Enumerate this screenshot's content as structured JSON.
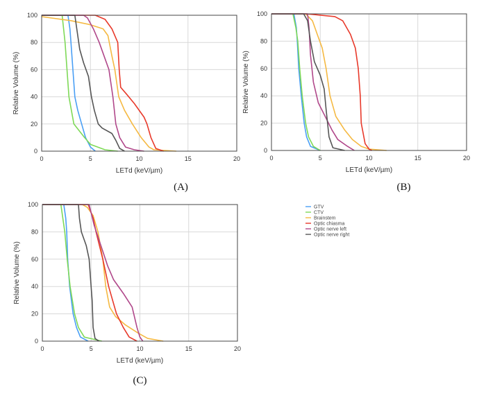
{
  "legend": {
    "placement": "right of panel C",
    "entries": [
      {
        "name": "GTV",
        "color": "#4a9ff5"
      },
      {
        "name": "CTV",
        "color": "#7ed957"
      },
      {
        "name": "Brainstem",
        "color": "#f5b942"
      },
      {
        "name": "Optic chiasma",
        "color": "#e8392a"
      },
      {
        "name": "Optic nerve left",
        "color": "#b0478a"
      },
      {
        "name": "Optic nerve right",
        "color": "#555555"
      }
    ]
  },
  "chart_data": [
    {
      "type": "line",
      "caption": "(A)",
      "xlabel": "LETd (keV/µm)",
      "ylabel": "Relative Volume (%)",
      "xlim": [
        0,
        20
      ],
      "ylim": [
        0,
        100
      ],
      "xticks": [
        0,
        5,
        10,
        15,
        20
      ],
      "yticks": [
        0,
        20,
        40,
        60,
        80,
        100
      ],
      "grid": true,
      "series": [
        {
          "name": "GTV",
          "points": [
            [
              0,
              100
            ],
            [
              2.7,
              100
            ],
            [
              2.9,
              90
            ],
            [
              3.0,
              80
            ],
            [
              3.2,
              60
            ],
            [
              3.4,
              40
            ],
            [
              3.7,
              30
            ],
            [
              4.1,
              20
            ],
            [
              4.5,
              10
            ],
            [
              5.0,
              3
            ],
            [
              5.5,
              0
            ]
          ]
        },
        {
          "name": "CTV",
          "points": [
            [
              0,
              100
            ],
            [
              2.1,
              100
            ],
            [
              2.25,
              90
            ],
            [
              2.4,
              80
            ],
            [
              2.6,
              60
            ],
            [
              2.8,
              40
            ],
            [
              3.3,
              20
            ],
            [
              4.4,
              10
            ],
            [
              5.0,
              5
            ],
            [
              6.5,
              1
            ],
            [
              7.8,
              0
            ]
          ]
        },
        {
          "name": "Brainstem",
          "points": [
            [
              0,
              99
            ],
            [
              3,
              96
            ],
            [
              5,
              93
            ],
            [
              6.3,
              90
            ],
            [
              6.8,
              85
            ],
            [
              7.2,
              70
            ],
            [
              7.5,
              60
            ],
            [
              7.9,
              40
            ],
            [
              8.5,
              30
            ],
            [
              9.3,
              20
            ],
            [
              10.2,
              10
            ],
            [
              11,
              3
            ],
            [
              11.5,
              1
            ],
            [
              13.8,
              0
            ]
          ]
        },
        {
          "name": "Optic chiasma",
          "points": [
            [
              0,
              100
            ],
            [
              5.5,
              100
            ],
            [
              6.5,
              97
            ],
            [
              7.2,
              90
            ],
            [
              7.8,
              80
            ],
            [
              7.95,
              60
            ],
            [
              8.1,
              47
            ],
            [
              8.7,
              42
            ],
            [
              9.5,
              35
            ],
            [
              10.5,
              25
            ],
            [
              10.8,
              20
            ],
            [
              11.2,
              10
            ],
            [
              11.7,
              2
            ],
            [
              12.5,
              0
            ]
          ]
        },
        {
          "name": "Optic nerve left",
          "points": [
            [
              0,
              100
            ],
            [
              4.3,
              100
            ],
            [
              4.7,
              98
            ],
            [
              5.3,
              90
            ],
            [
              5.9,
              80
            ],
            [
              6.4,
              70
            ],
            [
              6.9,
              60
            ],
            [
              7.3,
              40
            ],
            [
              7.6,
              20
            ],
            [
              8.0,
              10
            ],
            [
              8.6,
              3
            ],
            [
              9.5,
              1
            ],
            [
              10.5,
              0
            ]
          ]
        },
        {
          "name": "Optic nerve right",
          "points": [
            [
              0,
              100
            ],
            [
              3.4,
              100
            ],
            [
              3.6,
              90
            ],
            [
              3.9,
              75
            ],
            [
              4.3,
              65
            ],
            [
              4.8,
              55
            ],
            [
              5.1,
              40
            ],
            [
              5.4,
              30
            ],
            [
              5.8,
              20
            ],
            [
              6.2,
              17
            ],
            [
              7.2,
              13
            ],
            [
              7.6,
              8
            ],
            [
              8.0,
              2
            ],
            [
              8.5,
              0
            ]
          ]
        }
      ]
    },
    {
      "type": "line",
      "caption": "(B)",
      "xlabel": "LETd (keV/µm)",
      "ylabel": "Relative Volume (%)",
      "xlim": [
        0,
        20
      ],
      "ylim": [
        0,
        100
      ],
      "xticks": [
        0,
        5,
        10,
        15,
        20
      ],
      "yticks": [
        0,
        20,
        40,
        60,
        80,
        100
      ],
      "grid": true,
      "series": [
        {
          "name": "GTV",
          "points": [
            [
              0,
              100
            ],
            [
              2.3,
              100
            ],
            [
              2.55,
              90
            ],
            [
              2.65,
              80
            ],
            [
              2.8,
              60
            ],
            [
              3.05,
              40
            ],
            [
              3.35,
              20
            ],
            [
              3.6,
              10
            ],
            [
              4.0,
              3
            ],
            [
              5.0,
              0
            ]
          ]
        },
        {
          "name": "CTV",
          "points": [
            [
              0,
              100
            ],
            [
              2.2,
              100
            ],
            [
              2.5,
              90
            ],
            [
              2.7,
              80
            ],
            [
              2.9,
              60
            ],
            [
              3.15,
              40
            ],
            [
              3.5,
              20
            ],
            [
              3.8,
              10
            ],
            [
              4.3,
              3
            ],
            [
              5.0,
              0
            ]
          ]
        },
        {
          "name": "Brainstem",
          "points": [
            [
              0,
              100
            ],
            [
              3.5,
              100
            ],
            [
              4.2,
              95
            ],
            [
              4.7,
              85
            ],
            [
              5.2,
              75
            ],
            [
              5.6,
              60
            ],
            [
              6.0,
              40
            ],
            [
              6.6,
              25
            ],
            [
              7.5,
              15
            ],
            [
              8.3,
              8
            ],
            [
              9.2,
              3
            ],
            [
              10,
              1
            ],
            [
              11.8,
              0
            ]
          ]
        },
        {
          "name": "Optic chiasma",
          "points": [
            [
              0,
              100
            ],
            [
              3.6,
              100
            ],
            [
              6.5,
              98
            ],
            [
              7.3,
              95
            ],
            [
              8.1,
              85
            ],
            [
              8.6,
              75
            ],
            [
              8.9,
              60
            ],
            [
              9.1,
              40
            ],
            [
              9.2,
              20
            ],
            [
              9.6,
              5
            ],
            [
              10,
              1
            ],
            [
              10.3,
              0
            ]
          ]
        },
        {
          "name": "Optic nerve left",
          "points": [
            [
              0,
              100
            ],
            [
              3.7,
              100
            ],
            [
              3.85,
              90
            ],
            [
              4.0,
              70
            ],
            [
              4.3,
              50
            ],
            [
              4.8,
              35
            ],
            [
              5.5,
              25
            ],
            [
              6.2,
              15
            ],
            [
              6.8,
              8
            ],
            [
              7.8,
              3
            ],
            [
              8.5,
              0
            ]
          ]
        },
        {
          "name": "Optic nerve right",
          "points": [
            [
              0,
              100
            ],
            [
              3.3,
              100
            ],
            [
              3.7,
              95
            ],
            [
              4.0,
              80
            ],
            [
              4.4,
              65
            ],
            [
              5.0,
              55
            ],
            [
              5.4,
              45
            ],
            [
              5.6,
              30
            ],
            [
              5.9,
              10
            ],
            [
              6.3,
              2
            ],
            [
              7.5,
              0
            ]
          ]
        }
      ]
    },
    {
      "type": "line",
      "caption": "(C)",
      "xlabel": "LETd (keV/µm)",
      "ylabel": "Relative Volume (%)",
      "xlim": [
        0,
        20
      ],
      "ylim": [
        0,
        100
      ],
      "xticks": [
        0,
        5,
        10,
        15,
        20
      ],
      "yticks": [
        0,
        20,
        40,
        60,
        80,
        100
      ],
      "grid": true,
      "series": [
        {
          "name": "GTV",
          "points": [
            [
              0,
              100
            ],
            [
              2.2,
              100
            ],
            [
              2.4,
              90
            ],
            [
              2.5,
              80
            ],
            [
              2.6,
              60
            ],
            [
              2.8,
              40
            ],
            [
              3.15,
              20
            ],
            [
              3.5,
              10
            ],
            [
              3.9,
              3
            ],
            [
              4.7,
              0
            ]
          ]
        },
        {
          "name": "CTV",
          "points": [
            [
              0,
              100
            ],
            [
              1.9,
              100
            ],
            [
              2.1,
              90
            ],
            [
              2.3,
              80
            ],
            [
              2.55,
              60
            ],
            [
              2.85,
              40
            ],
            [
              3.3,
              20
            ],
            [
              3.7,
              10
            ],
            [
              4.3,
              3
            ],
            [
              6.1,
              0
            ]
          ]
        },
        {
          "name": "Brainstem",
          "points": [
            [
              0,
              100
            ],
            [
              4.1,
              100
            ],
            [
              4.6,
              98
            ],
            [
              5.2,
              92
            ],
            [
              5.7,
              80
            ],
            [
              6.2,
              60
            ],
            [
              6.5,
              40
            ],
            [
              6.9,
              25
            ],
            [
              7.5,
              18
            ],
            [
              8.5,
              12
            ],
            [
              9.8,
              6
            ],
            [
              10.8,
              2
            ],
            [
              12.4,
              0
            ]
          ]
        },
        {
          "name": "Optic chiasma",
          "points": [
            [
              0,
              100
            ],
            [
              4.7,
              100
            ],
            [
              5.2,
              90
            ],
            [
              5.5,
              80
            ],
            [
              6.2,
              60
            ],
            [
              6.8,
              40
            ],
            [
              7.6,
              20
            ],
            [
              8.3,
              10
            ],
            [
              8.9,
              3
            ],
            [
              9.7,
              0
            ]
          ]
        },
        {
          "name": "Optic nerve left",
          "points": [
            [
              0,
              100
            ],
            [
              4.8,
              100
            ],
            [
              5.3,
              85
            ],
            [
              6.0,
              70
            ],
            [
              6.7,
              55
            ],
            [
              7.3,
              45
            ],
            [
              8.3,
              35
            ],
            [
              9.2,
              25
            ],
            [
              9.7,
              10
            ],
            [
              10.0,
              3
            ],
            [
              10.3,
              0
            ]
          ]
        },
        {
          "name": "Optic nerve right",
          "points": [
            [
              0,
              100
            ],
            [
              3.7,
              100
            ],
            [
              3.8,
              90
            ],
            [
              4.0,
              80
            ],
            [
              4.5,
              70
            ],
            [
              4.8,
              60
            ],
            [
              4.95,
              45
            ],
            [
              5.1,
              30
            ],
            [
              5.2,
              10
            ],
            [
              5.4,
              2
            ],
            [
              5.8,
              0
            ]
          ]
        }
      ]
    }
  ]
}
